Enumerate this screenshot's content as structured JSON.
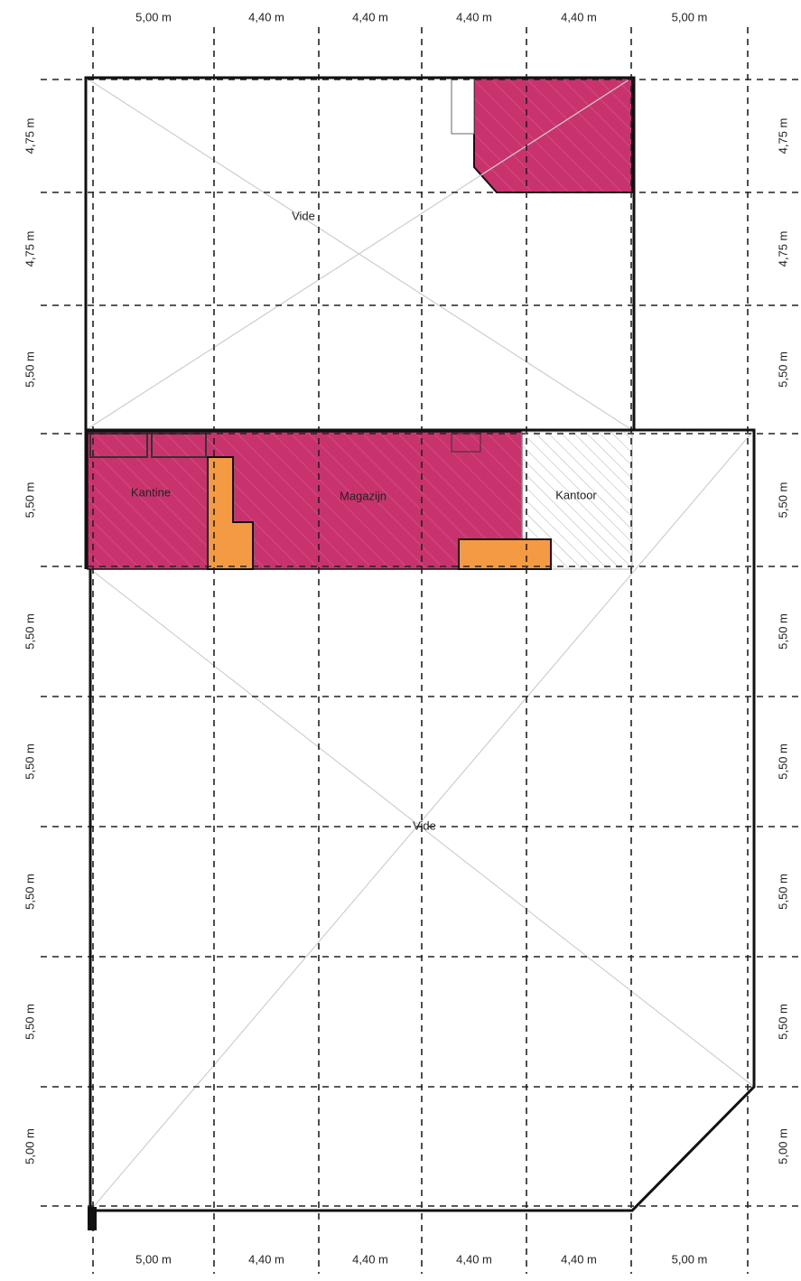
{
  "dimensions": {
    "top": [
      "5,00 m",
      "4,40 m",
      "4,40 m",
      "4,40 m",
      "4,40 m",
      "5,00 m"
    ],
    "bottom": [
      "5,00 m",
      "4,40 m",
      "4,40 m",
      "4,40 m",
      "4,40 m",
      "5,00 m"
    ],
    "left": [
      "4,75 m",
      "4,75 m",
      "5,50 m",
      "5,50 m",
      "5,50 m",
      "5,50 m",
      "5,50 m",
      "5,50 m",
      "5,00 m"
    ],
    "right": [
      "4,75 m",
      "4,75 m",
      "5,50 m",
      "5,50 m",
      "5,50 m",
      "5,50 m",
      "5,50 m",
      "5,50 m",
      "5,00 m"
    ]
  },
  "rooms": [
    "Vide",
    "Kantine",
    "Magazijn",
    "Kantoor",
    "Vide"
  ]
}
